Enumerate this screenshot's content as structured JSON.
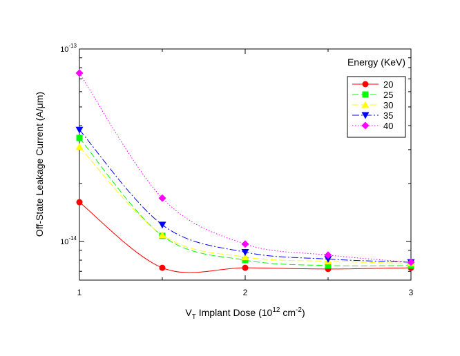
{
  "chart_data": {
    "type": "line",
    "xlabel": {
      "main": "V",
      "sub": "T",
      "rest": " Implant Dose (10",
      "sup1": "12",
      "unit": " cm",
      "sup2": "-2",
      "close": ")"
    },
    "ylabel": "Off-State Leakage Current (A/μm)",
    "x_ticks": [
      1,
      2,
      3
    ],
    "y_ticks": [
      {
        "value": 1e-14,
        "base": "10",
        "exp": "-14"
      },
      {
        "value": 1e-13,
        "base": "10",
        "exp": "-13"
      }
    ],
    "xlim": [
      1,
      3
    ],
    "ylim": [
      6.3e-15,
      1e-13
    ],
    "y_scale": "log",
    "grid": false,
    "legend": {
      "title": "Energy (KeV)",
      "placement": "top-right"
    },
    "x": [
      1.0,
      1.5,
      2.0,
      2.5,
      3.0
    ],
    "series": [
      {
        "name": "20",
        "color": "#ff0000",
        "marker": "circle",
        "line": "solid",
        "values": [
          1.6e-14,
          7.3e-15,
          7.3e-15,
          7.2e-15,
          7.3e-15
        ]
      },
      {
        "name": "25",
        "color": "#00ff00",
        "marker": "square",
        "line": "dashed",
        "values": [
          3.45e-14,
          1.07e-14,
          8e-15,
          7.5e-15,
          7.5e-15
        ]
      },
      {
        "name": "30",
        "color": "#ffff00",
        "marker": "triangle-up",
        "line": "dashed",
        "values": [
          3.1e-14,
          1.08e-14,
          8.3e-15,
          7.9e-15,
          7.7e-15
        ]
      },
      {
        "name": "35",
        "color": "#0000ff",
        "marker": "triangle-down",
        "line": "dashdot",
        "values": [
          3.8e-14,
          1.22e-14,
          8.8e-15,
          8.1e-15,
          7.8e-15
        ]
      },
      {
        "name": "40",
        "color": "#ff00ff",
        "marker": "diamond",
        "line": "dotted",
        "values": [
          7.5e-14,
          1.68e-14,
          9.7e-15,
          8.5e-15,
          7.8e-15
        ]
      }
    ]
  }
}
